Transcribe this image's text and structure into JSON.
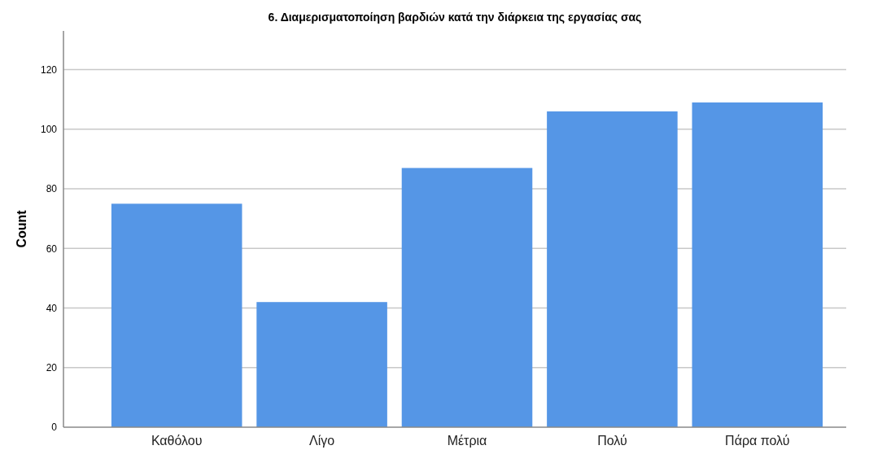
{
  "chart_data": {
    "type": "bar",
    "title": "6. Διαμερισματοποίηση βαρδιών κατά την διάρκεια της εργασίας σας",
    "ylabel": "Count",
    "categories": [
      "Καθόλου",
      "Λίγο",
      "Μέτρια",
      "Πολύ",
      "Πάρα πολύ"
    ],
    "values": [
      75,
      42,
      87,
      106,
      109
    ],
    "color": "#5596e6",
    "ylim": [
      0,
      133
    ],
    "yticks": [
      0,
      20,
      40,
      60,
      80,
      100,
      120
    ],
    "grid": "y"
  }
}
